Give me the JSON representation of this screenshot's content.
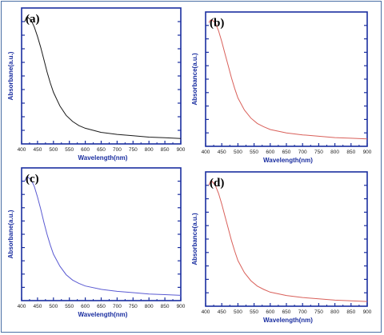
{
  "chart_data": [
    {
      "type": "line",
      "panel_label": "(a)",
      "title": "",
      "xlabel": "Wavelength(nm)",
      "ylabel": "Absorbane(a.u.)",
      "xlim": [
        400,
        900
      ],
      "ylim": [
        0,
        1
      ],
      "xticks": [
        400,
        450,
        500,
        550,
        600,
        650,
        700,
        750,
        800,
        850,
        900
      ],
      "show_ytick_labels": false,
      "grid": false,
      "axis_color": "#1a2ea0",
      "label_color": "#1a2ea0",
      "series": [
        {
          "color": "#1a1a1a",
          "x": [
            410,
            415,
            420,
            430,
            440,
            450,
            460,
            470,
            480,
            490,
            500,
            520,
            540,
            560,
            580,
            600,
            650,
            700,
            750,
            800,
            850,
            900
          ],
          "y": [
            0.9,
            0.93,
            0.93,
            0.91,
            0.86,
            0.79,
            0.71,
            0.62,
            0.53,
            0.45,
            0.38,
            0.28,
            0.21,
            0.165,
            0.135,
            0.115,
            0.085,
            0.07,
            0.06,
            0.05,
            0.045,
            0.04
          ]
        }
      ]
    },
    {
      "type": "line",
      "panel_label": "(b)",
      "title": "",
      "xlabel": "Wavelength(nm)",
      "ylabel": "Absorbance(a.u.)",
      "xlim": [
        400,
        900
      ],
      "ylim": [
        0,
        1
      ],
      "xticks": [
        400,
        450,
        500,
        550,
        600,
        650,
        700,
        750,
        800,
        850,
        900
      ],
      "show_ytick_labels": false,
      "grid": false,
      "axis_color": "#1a2ea0",
      "label_color": "#1a2ea0",
      "series": [
        {
          "color": "#d9605a",
          "x": [
            410,
            415,
            420,
            430,
            440,
            450,
            460,
            470,
            480,
            490,
            500,
            520,
            540,
            560,
            580,
            600,
            650,
            700,
            750,
            800,
            850,
            900
          ],
          "y": [
            0.92,
            0.94,
            0.94,
            0.92,
            0.86,
            0.78,
            0.69,
            0.6,
            0.51,
            0.43,
            0.36,
            0.27,
            0.21,
            0.17,
            0.145,
            0.125,
            0.1,
            0.085,
            0.075,
            0.065,
            0.06,
            0.055
          ]
        }
      ]
    },
    {
      "type": "line",
      "panel_label": "(c)",
      "title": "",
      "xlabel": "Wavelength(nm)",
      "ylabel": "Absorbane(a.u.)",
      "xlim": [
        400,
        900
      ],
      "ylim": [
        0,
        1
      ],
      "xticks": [
        400,
        450,
        500,
        550,
        600,
        650,
        700,
        750,
        800,
        850,
        900
      ],
      "show_ytick_labels": false,
      "grid": false,
      "axis_color": "#1a2ea0",
      "label_color": "#1a2ea0",
      "series": [
        {
          "color": "#5a5ad2",
          "x": [
            410,
            415,
            420,
            430,
            440,
            450,
            460,
            470,
            480,
            490,
            500,
            520,
            540,
            560,
            580,
            600,
            650,
            700,
            750,
            800,
            850,
            900
          ],
          "y": [
            0.9,
            0.93,
            0.93,
            0.91,
            0.86,
            0.78,
            0.69,
            0.59,
            0.5,
            0.42,
            0.35,
            0.26,
            0.195,
            0.155,
            0.13,
            0.11,
            0.085,
            0.07,
            0.06,
            0.05,
            0.045,
            0.04
          ]
        }
      ]
    },
    {
      "type": "line",
      "panel_label": "(d)",
      "title": "",
      "xlabel": "Wavelength(nm)",
      "ylabel": "Absorbance(a.u.)",
      "xlim": [
        400,
        900
      ],
      "ylim": [
        0,
        1
      ],
      "xticks": [
        400,
        450,
        500,
        550,
        600,
        650,
        700,
        750,
        800,
        850,
        900
      ],
      "show_ytick_labels": false,
      "grid": false,
      "axis_color": "#1a2ea0",
      "label_color": "#1a2ea0",
      "series": [
        {
          "color": "#d9605a",
          "x": [
            410,
            415,
            420,
            430,
            440,
            450,
            460,
            470,
            480,
            490,
            500,
            520,
            540,
            560,
            580,
            600,
            650,
            700,
            750,
            800,
            850,
            900
          ],
          "y": [
            0.9,
            0.93,
            0.93,
            0.9,
            0.84,
            0.76,
            0.67,
            0.58,
            0.49,
            0.41,
            0.34,
            0.25,
            0.19,
            0.15,
            0.125,
            0.105,
            0.08,
            0.065,
            0.055,
            0.045,
            0.04,
            0.035
          ]
        }
      ]
    }
  ]
}
